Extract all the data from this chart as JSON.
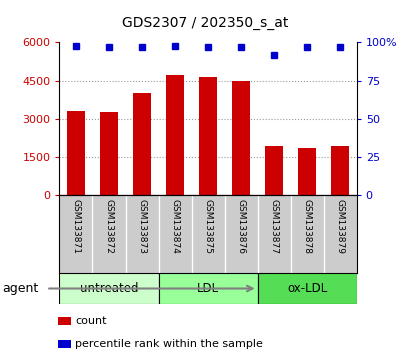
{
  "title": "GDS2307 / 202350_s_at",
  "samples": [
    "GSM133871",
    "GSM133872",
    "GSM133873",
    "GSM133874",
    "GSM133875",
    "GSM133876",
    "GSM133877",
    "GSM133878",
    "GSM133879"
  ],
  "counts": [
    3300,
    3250,
    4000,
    4700,
    4650,
    4500,
    1900,
    1850,
    1900
  ],
  "percentiles": [
    98,
    97,
    97,
    98,
    97,
    97,
    92,
    97,
    97
  ],
  "bar_color": "#cc0000",
  "dot_color": "#0000cc",
  "ylim_left": [
    0,
    6000
  ],
  "ylim_right": [
    0,
    100
  ],
  "yticks_left": [
    0,
    1500,
    3000,
    4500,
    6000
  ],
  "yticks_right": [
    0,
    25,
    50,
    75,
    100
  ],
  "ytick_labels_left": [
    "0",
    "1500",
    "3000",
    "4500",
    "6000"
  ],
  "ytick_labels_right": [
    "0",
    "25",
    "50",
    "75",
    "100%"
  ],
  "groups": [
    {
      "label": "untreated",
      "start": 0,
      "end": 3,
      "color": "#ccffcc"
    },
    {
      "label": "LDL",
      "start": 3,
      "end": 6,
      "color": "#99ff99"
    },
    {
      "label": "ox-LDL",
      "start": 6,
      "end": 9,
      "color": "#55dd55"
    }
  ],
  "agent_label": "agent",
  "legend_count_color": "#cc0000",
  "legend_dot_color": "#0000cc",
  "left_tick_color": "#cc0000",
  "right_tick_color": "#0000cc",
  "background_color": "#ffffff",
  "plot_bg_color": "#ffffff",
  "grid_color": "#999999",
  "sample_bg_color": "#cccccc"
}
